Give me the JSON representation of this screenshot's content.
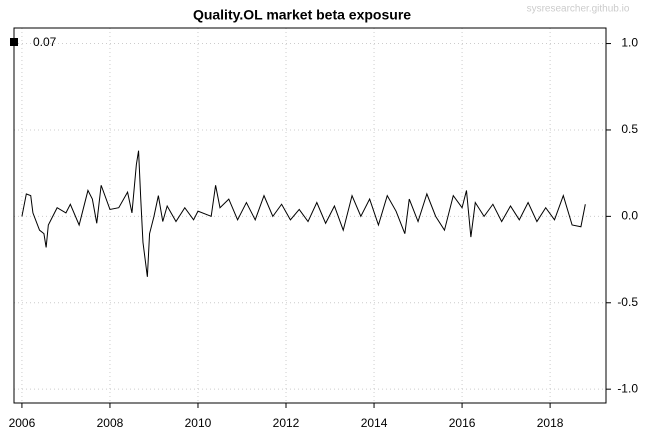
{
  "chart_data": {
    "type": "line",
    "title": "Quality.OL market beta exposure",
    "watermark": "sysresearcher.github.io",
    "x": [
      2006.0,
      2006.1,
      2006.2,
      2006.25,
      2006.4,
      2006.5,
      2006.55,
      2006.6,
      2006.8,
      2007.0,
      2007.1,
      2007.3,
      2007.5,
      2007.6,
      2007.7,
      2007.8,
      2008.0,
      2008.2,
      2008.4,
      2008.5,
      2008.6,
      2008.65,
      2008.7,
      2008.75,
      2008.85,
      2008.9,
      2009.0,
      2009.1,
      2009.2,
      2009.3,
      2009.5,
      2009.7,
      2009.9,
      2010.0,
      2010.3,
      2010.4,
      2010.5,
      2010.7,
      2010.9,
      2011.1,
      2011.3,
      2011.5,
      2011.7,
      2011.9,
      2012.1,
      2012.3,
      2012.5,
      2012.7,
      2012.9,
      2013.1,
      2013.3,
      2013.5,
      2013.7,
      2013.9,
      2014.1,
      2014.3,
      2014.5,
      2014.7,
      2014.8,
      2015.0,
      2015.2,
      2015.4,
      2015.6,
      2015.8,
      2016.0,
      2016.1,
      2016.2,
      2016.3,
      2016.5,
      2016.7,
      2016.9,
      2017.1,
      2017.3,
      2017.5,
      2017.7,
      2017.9,
      2018.1,
      2018.3,
      2018.5,
      2018.7,
      2018.8
    ],
    "series": [
      {
        "name": "0.07",
        "color": "#000000",
        "values": [
          0.0,
          0.13,
          0.12,
          0.02,
          -0.08,
          -0.1,
          -0.18,
          -0.05,
          0.05,
          0.02,
          0.07,
          -0.05,
          0.15,
          0.1,
          -0.04,
          0.18,
          0.04,
          0.05,
          0.14,
          0.02,
          0.3,
          0.38,
          0.1,
          -0.15,
          -0.35,
          -0.1,
          0.0,
          0.12,
          -0.03,
          0.06,
          -0.03,
          0.05,
          -0.02,
          0.03,
          0.0,
          0.18,
          0.05,
          0.1,
          -0.02,
          0.08,
          -0.02,
          0.12,
          0.0,
          0.07,
          -0.02,
          0.04,
          -0.03,
          0.08,
          -0.04,
          0.06,
          -0.08,
          0.12,
          0.0,
          0.1,
          -0.05,
          0.12,
          0.03,
          -0.1,
          0.1,
          -0.03,
          0.13,
          0.0,
          -0.08,
          0.12,
          0.05,
          0.15,
          -0.12,
          0.08,
          0.0,
          0.07,
          -0.03,
          0.06,
          -0.02,
          0.08,
          -0.03,
          0.05,
          -0.02,
          0.12,
          -0.05,
          -0.06,
          0.07
        ]
      }
    ],
    "xlim": [
      2005.82,
      2019.27
    ],
    "xticks": [
      2006,
      2008,
      2010,
      2012,
      2014,
      2016,
      2018
    ],
    "ylim": [
      -1.08,
      1.09
    ],
    "yticks": [
      {
        "value": 1,
        "label": "1.0"
      },
      0.5,
      {
        "value": 0,
        "label": "0.0"
      },
      -0.5,
      {
        "value": -1,
        "label": "-1.0"
      }
    ],
    "grid": true,
    "legend": "top-left"
  }
}
